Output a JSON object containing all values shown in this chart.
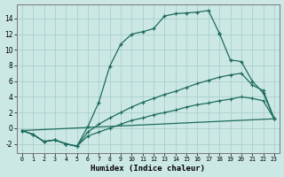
{
  "xlabel": "Humidex (Indice chaleur)",
  "bg_color": "#cce8e5",
  "grid_color": "#aad0cc",
  "line_color": "#1d6b5e",
  "xlim": [
    -0.5,
    23.5
  ],
  "ylim": [
    -3.2,
    15.8
  ],
  "xtick_vals": [
    0,
    1,
    2,
    3,
    4,
    5,
    6,
    7,
    8,
    9,
    10,
    11,
    12,
    13,
    14,
    15,
    16,
    17,
    18,
    19,
    20,
    21,
    22,
    23
  ],
  "ytick_vals": [
    -2,
    0,
    2,
    4,
    6,
    8,
    10,
    12,
    14
  ],
  "curve1_x": [
    0,
    1,
    2,
    3,
    4,
    5,
    6,
    7,
    8,
    9,
    10,
    11,
    12,
    13,
    14,
    15,
    16,
    17,
    18
  ],
  "curve1_y": [
    -0.3,
    -0.8,
    -1.7,
    -1.5,
    -2.0,
    -2.3,
    0.2,
    3.3,
    7.9,
    10.7,
    12.0,
    12.3,
    12.7,
    14.3,
    14.6,
    14.7,
    14.8,
    15.0,
    12.1
  ],
  "curve2_x": [
    18,
    19,
    20,
    21,
    22,
    23
  ],
  "curve2_y": [
    12.1,
    8.7,
    8.5,
    6.0,
    4.5,
    1.2
  ],
  "curve3_x": [
    0,
    1,
    2,
    3,
    4,
    5,
    6,
    7,
    8,
    9,
    10,
    11,
    12,
    13,
    14,
    15,
    16,
    17,
    18,
    19,
    20,
    21,
    22,
    23
  ],
  "curve3_y": [
    -0.3,
    -0.8,
    -1.7,
    -1.5,
    -2.0,
    -2.3,
    -1.0,
    -0.5,
    0.0,
    0.5,
    1.0,
    1.3,
    1.7,
    2.0,
    2.3,
    2.7,
    3.0,
    3.2,
    3.5,
    3.7,
    4.0,
    3.8,
    3.5,
    1.2
  ],
  "curve4_x": [
    0,
    1,
    2,
    3,
    4,
    5,
    6,
    7,
    8,
    9,
    10,
    11,
    12,
    13,
    14,
    15,
    16,
    17,
    18,
    19,
    20,
    21,
    22,
    23
  ],
  "curve4_y": [
    -0.3,
    -0.8,
    -1.7,
    -1.5,
    -2.0,
    -2.3,
    -0.5,
    0.5,
    1.3,
    2.0,
    2.7,
    3.3,
    3.8,
    4.3,
    4.7,
    5.2,
    5.7,
    6.1,
    6.5,
    6.8,
    7.0,
    5.5,
    4.8,
    1.2
  ]
}
